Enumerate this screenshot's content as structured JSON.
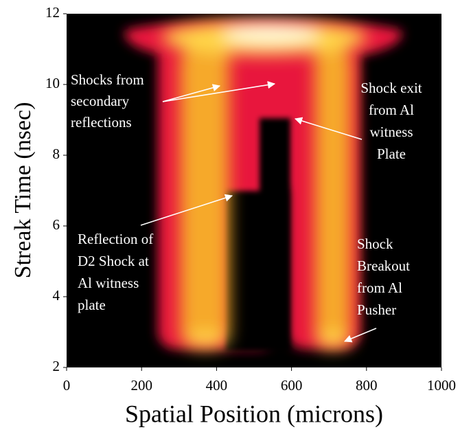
{
  "chart_data": {
    "type": "image",
    "xlabel": "Spatial Position (microns)",
    "ylabel": "Streak Time (nsec)",
    "xlim": [
      0,
      1000
    ],
    "xticks": [
      0,
      200,
      400,
      600,
      800,
      1000
    ],
    "ylim": [
      2,
      12
    ],
    "yticks": [
      2,
      4,
      6,
      8,
      10,
      12
    ],
    "annotations": [
      {
        "lines": [
          "Shocks from",
          "secondary",
          "reflections"
        ]
      },
      {
        "lines": [
          "Shock exit",
          "from Al",
          "witness",
          "Plate"
        ]
      },
      {
        "lines": [
          "Reflection of",
          "D2 Shock at",
          "Al witness",
          "plate"
        ]
      },
      {
        "lines": [
          "Shock",
          "Breakout",
          "from Al",
          "Pusher"
        ]
      }
    ]
  }
}
